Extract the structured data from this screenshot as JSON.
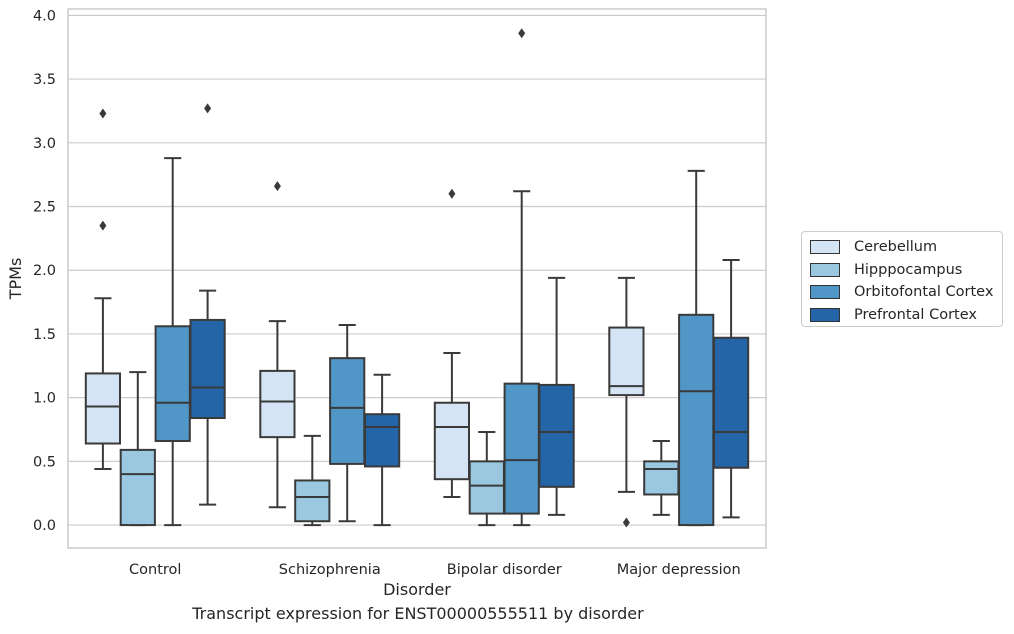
{
  "caption": "Transcript expression for ENST00000555511 by disorder",
  "chart_data": {
    "type": "box",
    "xlabel": "Disorder",
    "ylabel": "TPMs",
    "ylim": [
      -0.18,
      4.05
    ],
    "yticks": [
      "0.0",
      "0.5",
      "1.0",
      "1.5",
      "2.0",
      "2.5",
      "3.0",
      "3.5",
      "4.0"
    ],
    "grid": "horizontal",
    "legend_position": "right",
    "categories": [
      "Control",
      "Schizophrenia",
      "Bipolar disorder",
      "Major depression"
    ],
    "series": [
      {
        "name": "Cerebellum",
        "color": "#d4e4f4",
        "boxes": [
          {
            "min": 0.44,
            "q1": 0.64,
            "median": 0.93,
            "q3": 1.19,
            "max": 1.78,
            "outliers": [
              2.35,
              3.23
            ]
          },
          {
            "min": 0.14,
            "q1": 0.69,
            "median": 0.97,
            "q3": 1.21,
            "max": 1.6,
            "outliers": [
              2.66
            ]
          },
          {
            "min": 0.22,
            "q1": 0.36,
            "median": 0.77,
            "q3": 0.96,
            "max": 1.35,
            "outliers": [
              2.6
            ]
          },
          {
            "min": 0.26,
            "q1": 1.02,
            "median": 1.09,
            "q3": 1.55,
            "max": 1.94,
            "outliers": [
              0.02
            ]
          }
        ]
      },
      {
        "name": "Hipppocampus",
        "color": "#9ac8e0",
        "boxes": [
          {
            "min": 0.0,
            "q1": 0.0,
            "median": 0.4,
            "q3": 0.59,
            "max": 1.2,
            "outliers": []
          },
          {
            "min": 0.0,
            "q1": 0.03,
            "median": 0.22,
            "q3": 0.35,
            "max": 0.7,
            "outliers": []
          },
          {
            "min": 0.0,
            "q1": 0.09,
            "median": 0.31,
            "q3": 0.5,
            "max": 0.73,
            "outliers": []
          },
          {
            "min": 0.08,
            "q1": 0.24,
            "median": 0.44,
            "q3": 0.5,
            "max": 0.66,
            "outliers": []
          }
        ]
      },
      {
        "name": "Orbitofontal Cortex",
        "color": "#5097c8",
        "boxes": [
          {
            "min": 0.0,
            "q1": 0.66,
            "median": 0.96,
            "q3": 1.56,
            "max": 2.88,
            "outliers": []
          },
          {
            "min": 0.03,
            "q1": 0.48,
            "median": 0.92,
            "q3": 1.31,
            "max": 1.57,
            "outliers": []
          },
          {
            "min": 0.0,
            "q1": 0.09,
            "median": 0.51,
            "q3": 1.11,
            "max": 2.62,
            "outliers": [
              3.86
            ]
          },
          {
            "min": 0.0,
            "q1": 0.0,
            "median": 1.05,
            "q3": 1.65,
            "max": 2.78,
            "outliers": []
          }
        ]
      },
      {
        "name": "Prefrontal Cortex",
        "color": "#2465a8",
        "boxes": [
          {
            "min": 0.16,
            "q1": 0.84,
            "median": 1.08,
            "q3": 1.61,
            "max": 1.84,
            "outliers": [
              3.27
            ]
          },
          {
            "min": 0.0,
            "q1": 0.46,
            "median": 0.77,
            "q3": 0.87,
            "max": 1.18,
            "outliers": []
          },
          {
            "min": 0.08,
            "q1": 0.3,
            "median": 0.73,
            "q3": 1.1,
            "max": 1.94,
            "outliers": []
          },
          {
            "min": 0.06,
            "q1": 0.45,
            "median": 0.73,
            "q3": 1.47,
            "max": 2.08,
            "outliers": []
          }
        ]
      }
    ]
  }
}
